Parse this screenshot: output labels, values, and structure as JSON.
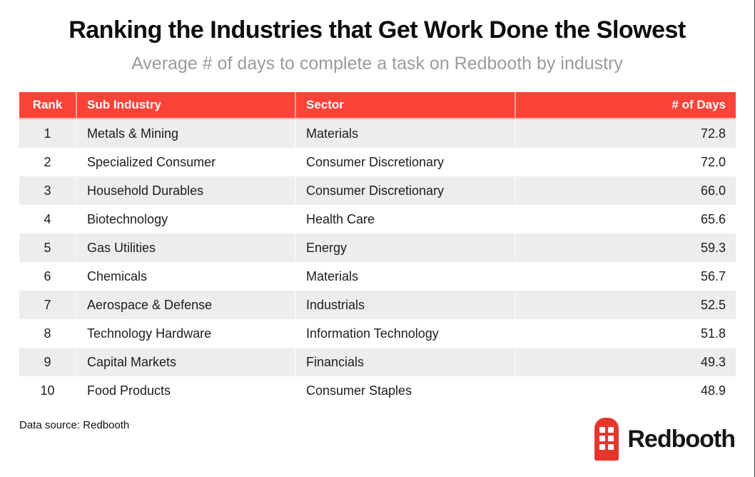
{
  "page": {
    "title": "Ranking the Industries that Get Work Done the Slowest",
    "subtitle": "Average # of days to complete a task on Redbooth by industry",
    "data_source": "Data source: Redbooth",
    "brand": {
      "name": "Redbooth",
      "icon": "redbooth-booth-icon"
    }
  },
  "colors": {
    "header_red": "#FC4338",
    "row_alt_gray": "#EDEDED",
    "subtitle_gray": "#9B9B9B",
    "text_dark": "#1D1D1D",
    "logo_red": "#E6362C"
  },
  "table": {
    "columns": [
      "Rank",
      "Sub Industry",
      "Sector",
      "# of Days"
    ],
    "rows": [
      [
        "1",
        "Metals & Mining",
        "Materials",
        "72.8"
      ],
      [
        "2",
        "Specialized Consumer",
        "Consumer Discretionary",
        "72.0"
      ],
      [
        "3",
        "Household Durables",
        "Consumer Discretionary",
        "66.0"
      ],
      [
        "4",
        "Biotechnology",
        "Health Care",
        "65.6"
      ],
      [
        "5",
        "Gas Utilities",
        "Energy",
        "59.3"
      ],
      [
        "6",
        "Chemicals",
        "Materials",
        "56.7"
      ],
      [
        "7",
        "Aerospace & Defense",
        "Industrials",
        "52.5"
      ],
      [
        "8",
        "Technology Hardware",
        "Information Technology",
        "51.8"
      ],
      [
        "9",
        "Capital Markets",
        "Financials",
        "49.3"
      ],
      [
        "10",
        "Food Products",
        "Consumer Staples",
        "48.9"
      ]
    ]
  },
  "chart_data": {
    "type": "table",
    "title": "Ranking the Industries that Get Work Done the Slowest",
    "subtitle": "Average # of days to complete a task on Redbooth by industry",
    "columns": [
      "Rank",
      "Sub Industry",
      "Sector",
      "# of Days"
    ],
    "rows": [
      [
        1,
        "Metals & Mining",
        "Materials",
        72.8
      ],
      [
        2,
        "Specialized Consumer",
        "Consumer Discretionary",
        72.0
      ],
      [
        3,
        "Household Durables",
        "Consumer Discretionary",
        66.0
      ],
      [
        4,
        "Biotechnology",
        "Health Care",
        65.6
      ],
      [
        5,
        "Gas Utilities",
        "Energy",
        59.3
      ],
      [
        6,
        "Chemicals",
        "Materials",
        56.7
      ],
      [
        7,
        "Aerospace & Defense",
        "Industrials",
        52.5
      ],
      [
        8,
        "Technology Hardware",
        "Information Technology",
        51.8
      ],
      [
        9,
        "Capital Markets",
        "Financials",
        49.3
      ],
      [
        10,
        "Food Products",
        "Consumer Staples",
        48.9
      ]
    ],
    "value_series": {
      "name": "# of Days",
      "categories": [
        "Metals & Mining",
        "Specialized Consumer",
        "Household Durables",
        "Biotechnology",
        "Gas Utilities",
        "Chemicals",
        "Aerospace & Defense",
        "Technology Hardware",
        "Capital Markets",
        "Food Products"
      ],
      "values": [
        72.8,
        72.0,
        66.0,
        65.6,
        59.3,
        56.7,
        52.5,
        51.8,
        49.3,
        48.9
      ]
    },
    "source": "Data source: Redbooth"
  }
}
